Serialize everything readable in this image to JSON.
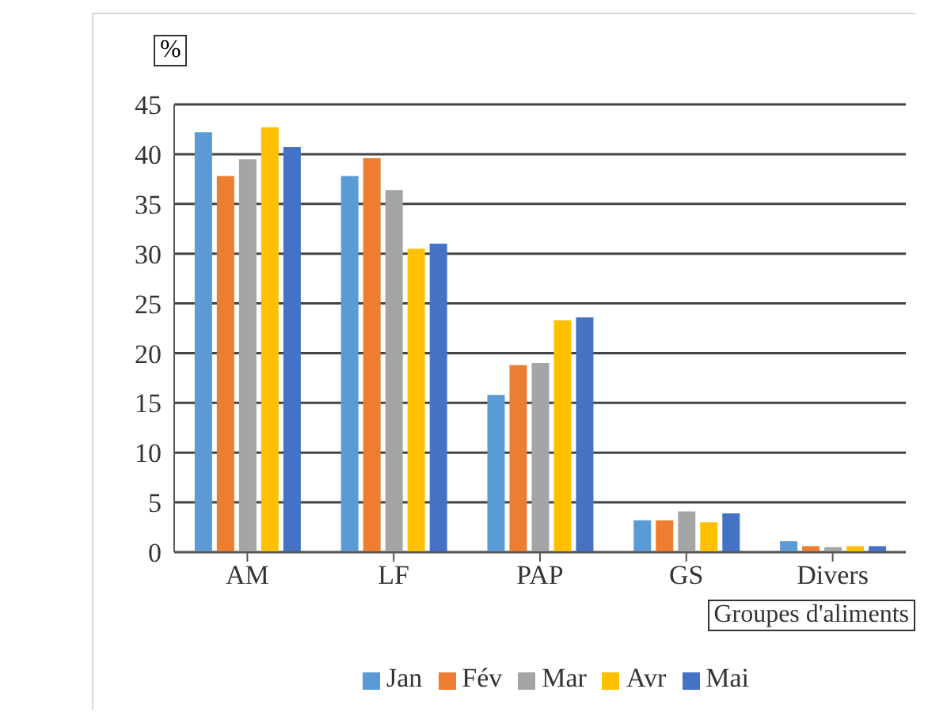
{
  "chart_data": {
    "type": "bar",
    "ylabel": "%",
    "xlabel": "Groupes d'aliments",
    "categories": [
      "AM",
      "LF",
      "PAP",
      "GS",
      "Divers"
    ],
    "series": [
      {
        "name": "Jan",
        "color": "#5b9bd5",
        "values": [
          42.2,
          37.8,
          15.8,
          3.2,
          1.1
        ]
      },
      {
        "name": "Fév",
        "color": "#ed7d31",
        "values": [
          37.8,
          39.6,
          18.8,
          3.2,
          0.6
        ]
      },
      {
        "name": "Mar",
        "color": "#a5a5a5",
        "values": [
          39.5,
          36.4,
          19,
          4.1,
          0.5
        ]
      },
      {
        "name": "Avr",
        "color": "#ffc000",
        "values": [
          42.7,
          30.5,
          23.3,
          3,
          0.6
        ]
      },
      {
        "name": "Mai",
        "color": "#4472c4",
        "values": [
          40.7,
          31,
          23.6,
          3.9,
          0.6
        ]
      }
    ],
    "ylim": [
      0,
      45
    ],
    "yticks": [
      0,
      5,
      10,
      15,
      20,
      25,
      30,
      35,
      40,
      45
    ],
    "grid": "y",
    "legend": "bottom"
  }
}
